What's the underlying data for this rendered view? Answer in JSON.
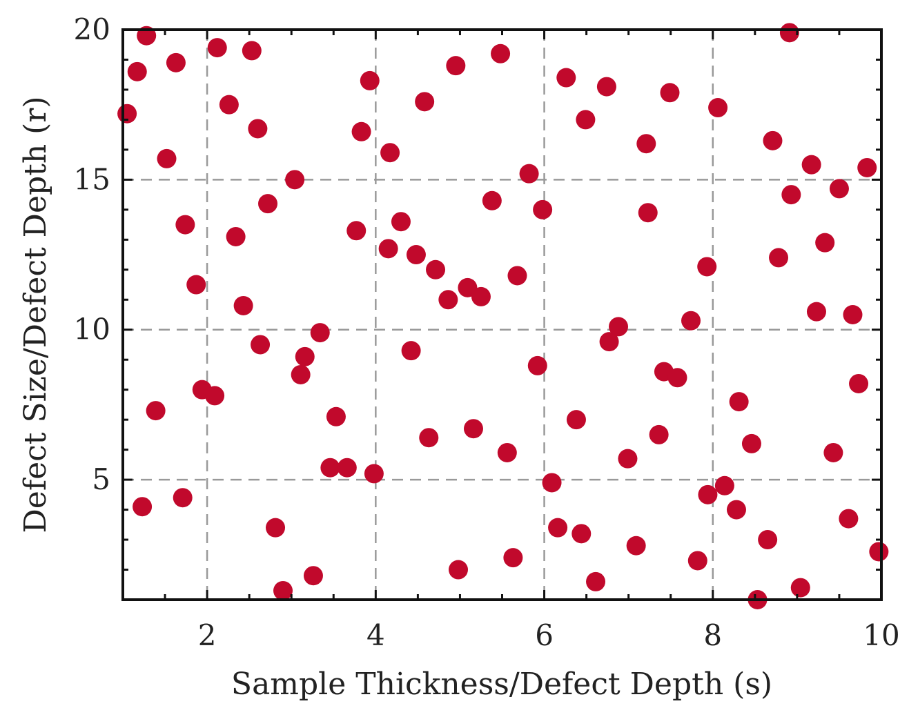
{
  "chart_data": {
    "type": "scatter",
    "xlabel": "Sample Thickness/Defect Depth (s)",
    "ylabel": "Defect Size/Defect Depth (r)",
    "xlim": [
      1,
      10
    ],
    "ylim": [
      1,
      20
    ],
    "xticks": [
      2,
      4,
      6,
      8,
      10
    ],
    "yticks": [
      5,
      10,
      15,
      20
    ],
    "grid": true,
    "color": "#c1092c",
    "points": [
      [
        1.05,
        17.2
      ],
      [
        1.17,
        18.6
      ],
      [
        1.28,
        19.8
      ],
      [
        1.23,
        4.1
      ],
      [
        1.39,
        7.3
      ],
      [
        1.52,
        15.7
      ],
      [
        1.63,
        18.9
      ],
      [
        1.71,
        4.4
      ],
      [
        1.74,
        13.5
      ],
      [
        1.87,
        11.5
      ],
      [
        1.94,
        8.0
      ],
      [
        2.09,
        7.8
      ],
      [
        2.12,
        19.4
      ],
      [
        2.26,
        17.5
      ],
      [
        2.34,
        13.1
      ],
      [
        2.43,
        10.8
      ],
      [
        2.53,
        19.3
      ],
      [
        2.6,
        16.7
      ],
      [
        2.63,
        9.5
      ],
      [
        2.72,
        14.2
      ],
      [
        2.81,
        3.4
      ],
      [
        2.9,
        1.3
      ],
      [
        3.04,
        15.0
      ],
      [
        3.11,
        8.5
      ],
      [
        3.16,
        9.1
      ],
      [
        3.26,
        1.8
      ],
      [
        3.34,
        9.9
      ],
      [
        3.46,
        5.4
      ],
      [
        3.53,
        7.1
      ],
      [
        3.66,
        5.4
      ],
      [
        3.77,
        13.3
      ],
      [
        3.83,
        16.6
      ],
      [
        3.93,
        18.3
      ],
      [
        3.98,
        5.2
      ],
      [
        4.15,
        12.7
      ],
      [
        4.17,
        15.9
      ],
      [
        4.3,
        13.6
      ],
      [
        4.42,
        9.3
      ],
      [
        4.48,
        12.5
      ],
      [
        4.58,
        17.6
      ],
      [
        4.63,
        6.4
      ],
      [
        4.71,
        12.0
      ],
      [
        4.86,
        11.0
      ],
      [
        4.95,
        18.8
      ],
      [
        4.98,
        2.0
      ],
      [
        5.09,
        11.4
      ],
      [
        5.16,
        6.7
      ],
      [
        5.25,
        11.1
      ],
      [
        5.38,
        14.3
      ],
      [
        5.48,
        19.2
      ],
      [
        5.56,
        5.9
      ],
      [
        5.63,
        2.4
      ],
      [
        5.68,
        11.8
      ],
      [
        5.82,
        15.2
      ],
      [
        5.92,
        8.8
      ],
      [
        5.98,
        14.0
      ],
      [
        6.09,
        4.9
      ],
      [
        6.16,
        3.4
      ],
      [
        6.26,
        18.4
      ],
      [
        6.38,
        7.0
      ],
      [
        6.44,
        3.2
      ],
      [
        6.49,
        17.0
      ],
      [
        6.61,
        1.6
      ],
      [
        6.74,
        18.1
      ],
      [
        6.77,
        9.6
      ],
      [
        6.88,
        10.1
      ],
      [
        6.99,
        5.7
      ],
      [
        7.09,
        2.8
      ],
      [
        7.21,
        16.2
      ],
      [
        7.23,
        13.9
      ],
      [
        7.36,
        6.5
      ],
      [
        7.42,
        8.6
      ],
      [
        7.49,
        17.9
      ],
      [
        7.58,
        8.4
      ],
      [
        7.74,
        10.3
      ],
      [
        7.82,
        2.3
      ],
      [
        7.93,
        12.1
      ],
      [
        7.94,
        4.5
      ],
      [
        8.06,
        17.4
      ],
      [
        8.14,
        4.8
      ],
      [
        8.28,
        4.0
      ],
      [
        8.31,
        7.6
      ],
      [
        8.46,
        6.2
      ],
      [
        8.53,
        1.0
      ],
      [
        8.65,
        3.0
      ],
      [
        8.71,
        16.3
      ],
      [
        8.78,
        12.4
      ],
      [
        8.91,
        19.9
      ],
      [
        8.93,
        14.5
      ],
      [
        9.04,
        1.4
      ],
      [
        9.17,
        15.5
      ],
      [
        9.23,
        10.6
      ],
      [
        9.33,
        12.9
      ],
      [
        9.43,
        5.9
      ],
      [
        9.5,
        14.7
      ],
      [
        9.61,
        3.7
      ],
      [
        9.66,
        10.5
      ],
      [
        9.73,
        8.2
      ],
      [
        9.83,
        15.4
      ],
      [
        9.97,
        2.6
      ]
    ]
  }
}
